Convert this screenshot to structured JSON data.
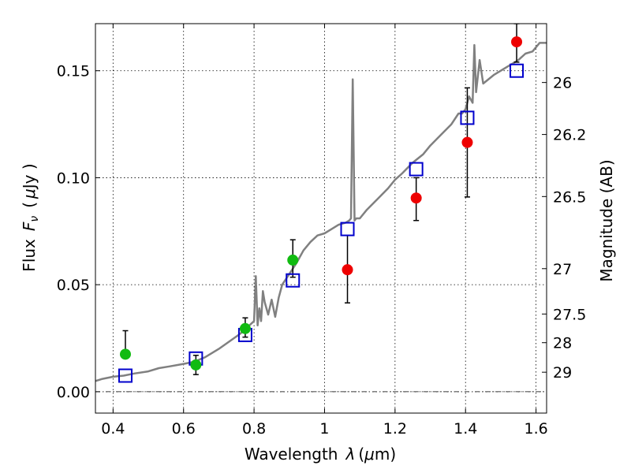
{
  "chart_data": {
    "type": "scatter",
    "xlabel": "Wavelength",
    "xlabel_symbol": "λ",
    "xlabel_unit_open": "(",
    "xlabel_unit_mu": "μ",
    "xlabel_unit_rest": "m)",
    "ylabel": "Flux",
    "ylabel_symbol_main": "F",
    "ylabel_symbol_sub": "ν",
    "ylabel_unit_open": "(",
    "ylabel_unit_mu": "μ",
    "ylabel_unit_rest": "Jy )",
    "y2label": "Magnitude (AB)",
    "xlim": [
      0.35,
      1.63
    ],
    "ylim": [
      -0.01,
      0.172
    ],
    "grid": true,
    "x_ticks": [
      {
        "value": 0.4,
        "label": "0.4"
      },
      {
        "value": 0.6,
        "label": "0.6"
      },
      {
        "value": 0.8,
        "label": "0.8"
      },
      {
        "value": 1.0,
        "label": "1"
      },
      {
        "value": 1.2,
        "label": "1.2"
      },
      {
        "value": 1.4,
        "label": "1.4"
      },
      {
        "value": 1.6,
        "label": "1.6"
      }
    ],
    "y_ticks": [
      {
        "value": 0.0,
        "label": "0.00"
      },
      {
        "value": 0.05,
        "label": "0.05"
      },
      {
        "value": 0.1,
        "label": "0.10"
      },
      {
        "value": 0.15,
        "label": "0.15"
      }
    ],
    "mag_ticks": [
      {
        "flux": 0.1445,
        "label": "26"
      },
      {
        "flux": 0.1202,
        "label": "26.2"
      },
      {
        "flux": 0.0912,
        "label": "26.5"
      },
      {
        "flux": 0.0575,
        "label": "27"
      },
      {
        "flux": 0.0363,
        "label": "27.5"
      },
      {
        "flux": 0.0229,
        "label": "28"
      },
      {
        "flux": 0.0091,
        "label": "29"
      }
    ],
    "zero_line": 0.0,
    "series": [
      {
        "kind": "line",
        "color": "#808080",
        "x": [
          0.35,
          0.37,
          0.4,
          0.43,
          0.46,
          0.5,
          0.53,
          0.56,
          0.6,
          0.63,
          0.66,
          0.7,
          0.73,
          0.76,
          0.78,
          0.8,
          0.805,
          0.81,
          0.815,
          0.82,
          0.825,
          0.83,
          0.84,
          0.85,
          0.86,
          0.87,
          0.88,
          0.9,
          0.92,
          0.94,
          0.96,
          0.98,
          1.0,
          1.02,
          1.04,
          1.06,
          1.07,
          1.075,
          1.08,
          1.085,
          1.09,
          1.1,
          1.12,
          1.15,
          1.18,
          1.2,
          1.22,
          1.25,
          1.28,
          1.3,
          1.33,
          1.36,
          1.38,
          1.39,
          1.4,
          1.41,
          1.42,
          1.425,
          1.43,
          1.44,
          1.45,
          1.48,
          1.5,
          1.53,
          1.55,
          1.57,
          1.59,
          1.61,
          1.63
        ],
        "y": [
          0.005,
          0.006,
          0.007,
          0.0075,
          0.0085,
          0.0095,
          0.011,
          0.0118,
          0.013,
          0.014,
          0.016,
          0.02,
          0.0235,
          0.027,
          0.03,
          0.033,
          0.054,
          0.031,
          0.039,
          0.033,
          0.047,
          0.042,
          0.036,
          0.043,
          0.035,
          0.044,
          0.05,
          0.055,
          0.06,
          0.066,
          0.07,
          0.073,
          0.074,
          0.076,
          0.078,
          0.079,
          0.08,
          0.081,
          0.146,
          0.08,
          0.081,
          0.081,
          0.085,
          0.09,
          0.095,
          0.099,
          0.102,
          0.107,
          0.111,
          0.115,
          0.12,
          0.125,
          0.13,
          0.13,
          0.132,
          0.138,
          0.135,
          0.162,
          0.14,
          0.155,
          0.144,
          0.148,
          0.15,
          0.153,
          0.155,
          0.158,
          0.159,
          0.163,
          0.163
        ]
      },
      {
        "kind": "markers-square",
        "color": "#0000cc",
        "x": [
          0.435,
          0.635,
          0.775,
          0.91,
          1.065,
          1.26,
          1.405,
          1.545
        ],
        "y": [
          0.0075,
          0.0155,
          0.0265,
          0.052,
          0.076,
          0.104,
          0.128,
          0.15
        ]
      },
      {
        "kind": "markers-circle",
        "color": "#11bb11",
        "x": [
          0.435,
          0.635,
          0.775,
          0.91
        ],
        "y": [
          0.0175,
          0.0125,
          0.0295,
          0.0615
        ],
        "err_low": [
          0.0175,
          0.008,
          0.0255,
          0.0535
        ],
        "err_high": [
          0.0285,
          0.017,
          0.0345,
          0.071
        ]
      },
      {
        "kind": "markers-circle",
        "color": "#ee0000",
        "x": [
          1.065,
          1.26,
          1.405,
          1.545
        ],
        "y": [
          0.057,
          0.0905,
          0.1165,
          0.1635
        ],
        "err_low": [
          0.0415,
          0.08,
          0.091,
          0.154
        ],
        "err_high": [
          0.073,
          0.1,
          0.142,
          0.172
        ]
      }
    ]
  }
}
